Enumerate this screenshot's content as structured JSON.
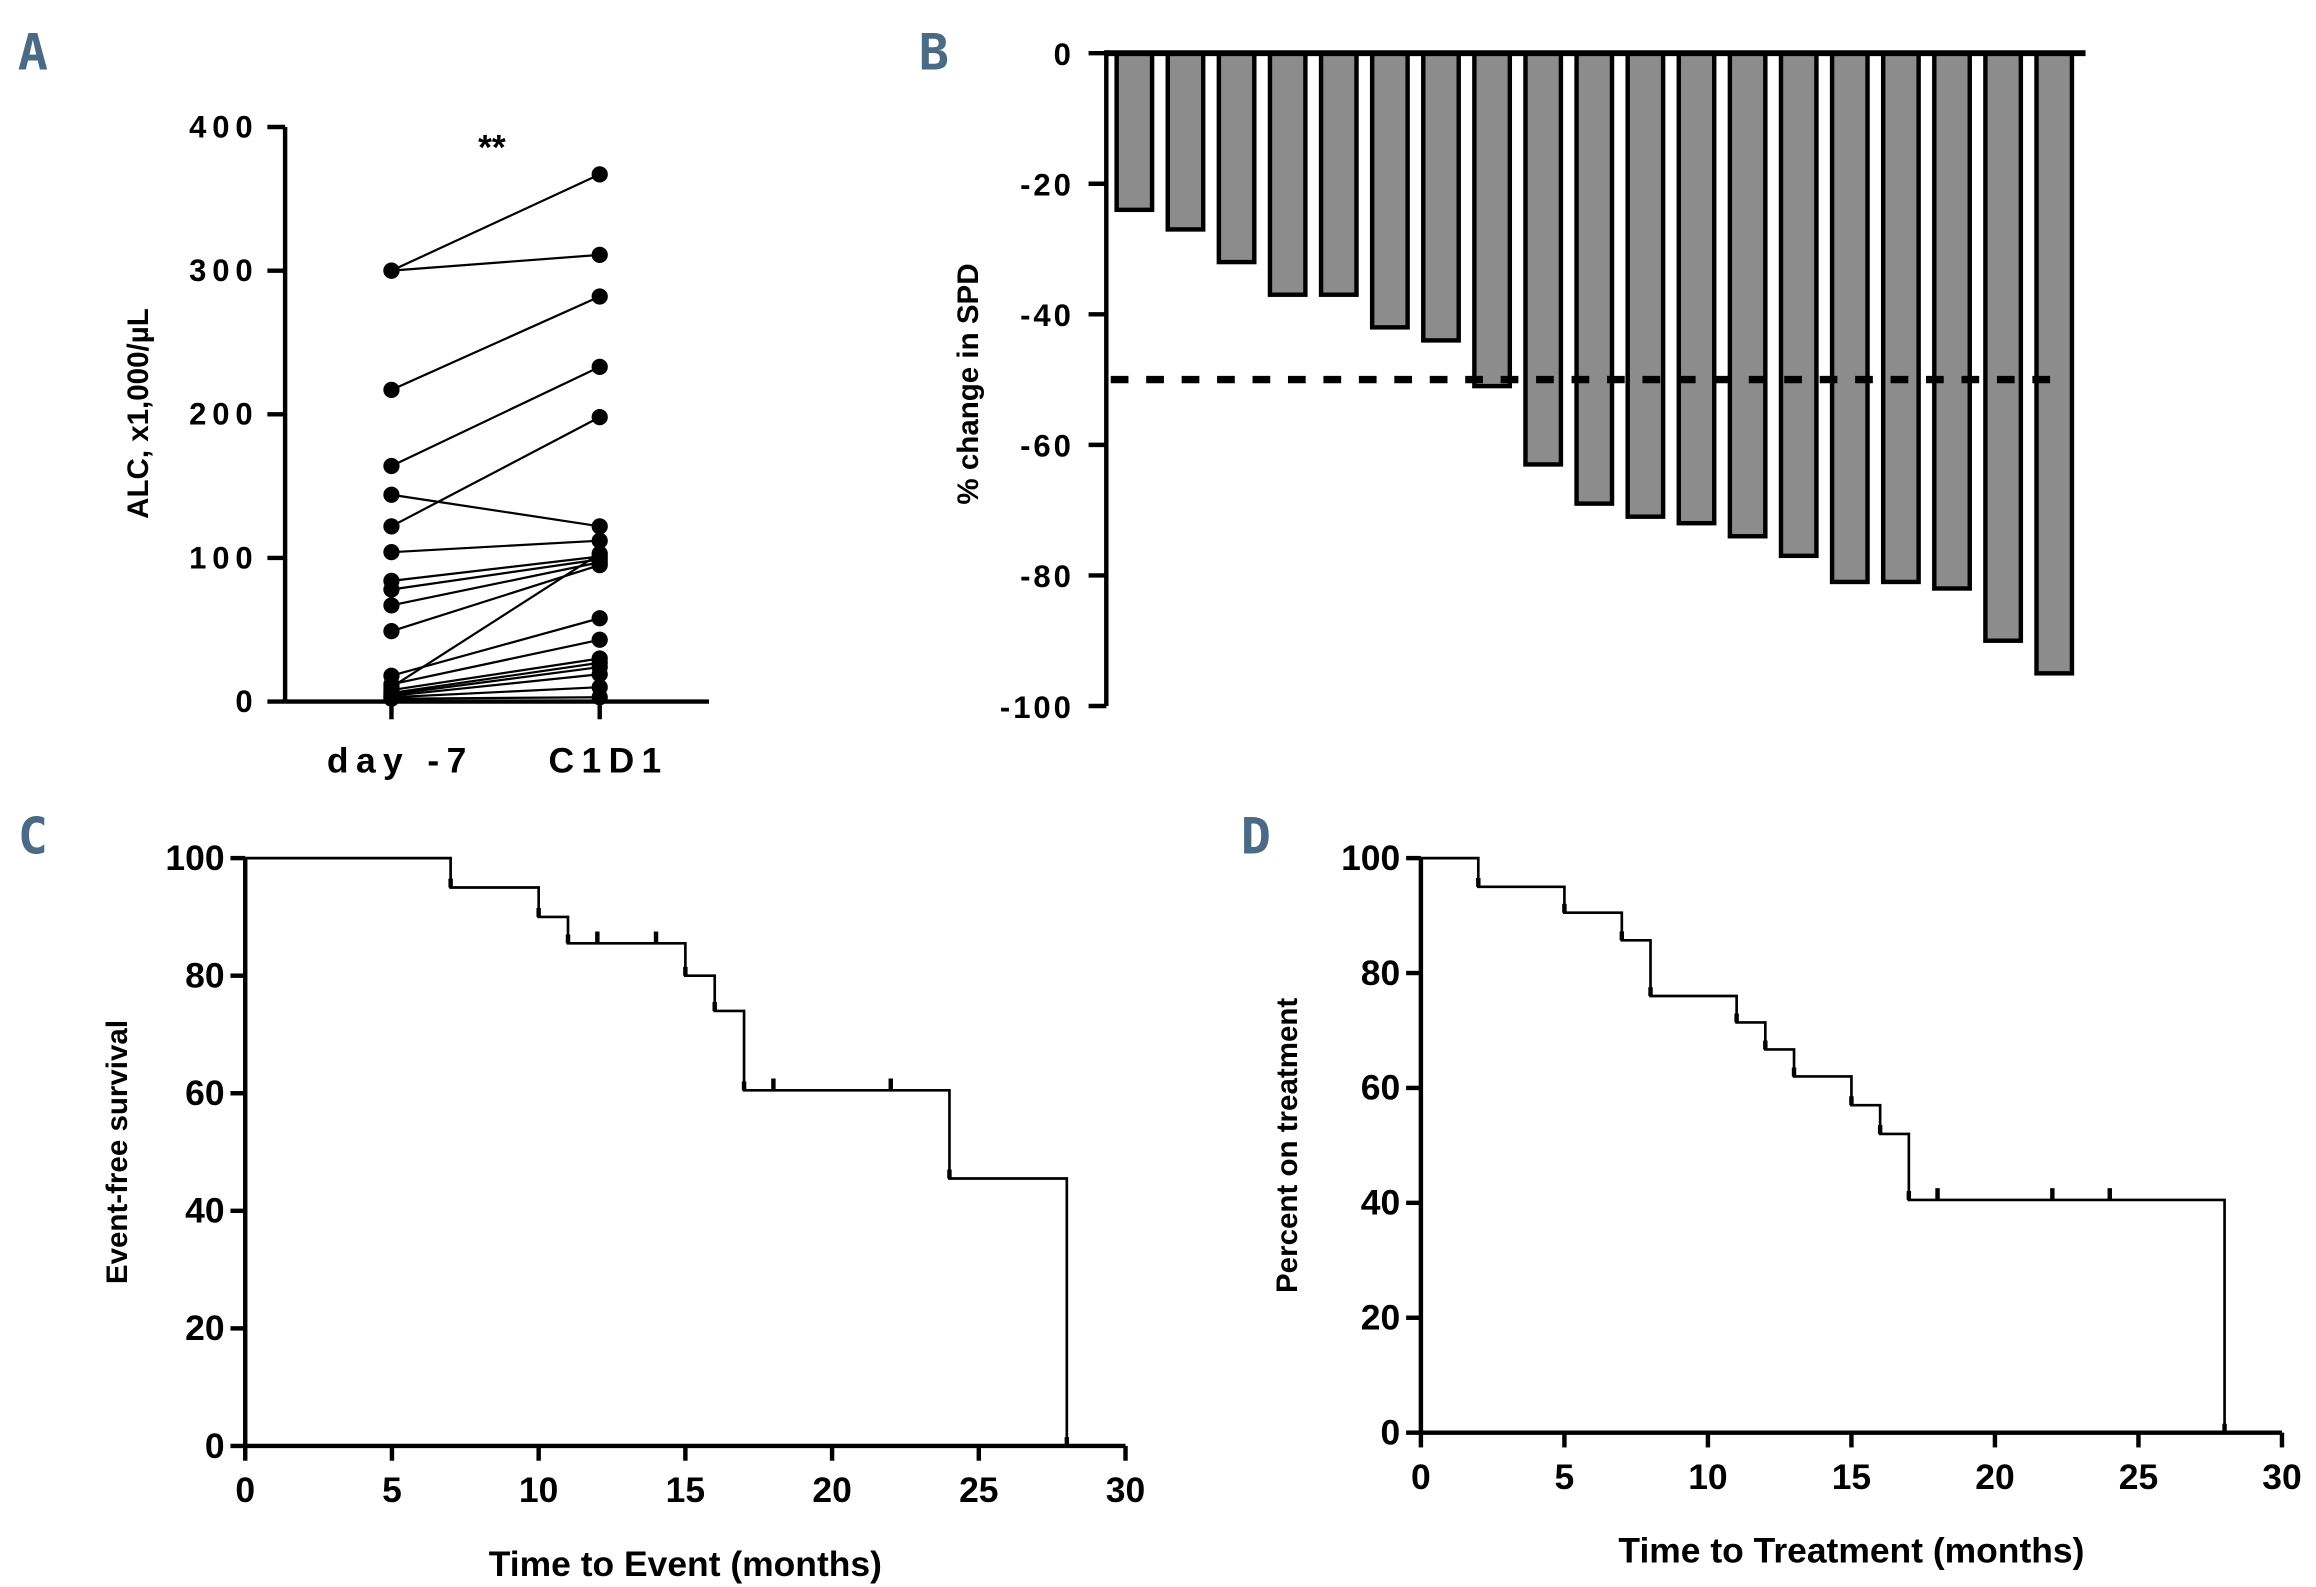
{
  "chart_data": [
    {
      "panel": "A",
      "type": "scatter",
      "title": "",
      "ylabel": "ALC, x1,000/µL",
      "ylim": [
        0,
        400
      ],
      "yticks": [
        0,
        100,
        200,
        300,
        400
      ],
      "categories": [
        "day -7",
        "C1D1"
      ],
      "annotation": "**",
      "pairs": [
        [
          300,
          367
        ],
        [
          300,
          311
        ],
        [
          217,
          282
        ],
        [
          164,
          233
        ],
        [
          122,
          198
        ],
        [
          144,
          122
        ],
        [
          104,
          112
        ],
        [
          84,
          101
        ],
        [
          78,
          99
        ],
        [
          67,
          97
        ],
        [
          49,
          95
        ],
        [
          10,
          103
        ],
        [
          18,
          58
        ],
        [
          12,
          43
        ],
        [
          8,
          30
        ],
        [
          6,
          27
        ],
        [
          5,
          24
        ],
        [
          4,
          19
        ],
        [
          3,
          10
        ],
        [
          2,
          3
        ]
      ]
    },
    {
      "panel": "B",
      "type": "bar",
      "ylabel": "% change in SPD",
      "ylim": [
        -100,
        0
      ],
      "yticks": [
        0,
        -20,
        -40,
        -60,
        -80,
        -100
      ],
      "values": [
        -24,
        -27,
        -32,
        -37,
        -37,
        -42,
        -44,
        -51,
        -63,
        -69,
        -71,
        -72,
        -74,
        -77,
        -81,
        -81,
        -82,
        -90,
        -95
      ],
      "reference_line": -50,
      "bar_color": "#8c8c8c"
    },
    {
      "panel": "C",
      "type": "line",
      "xlabel": "Time to Event (months)",
      "ylabel": "Event-free survival",
      "xlim": [
        0,
        30
      ],
      "ylim": [
        0,
        100
      ],
      "xticks": [
        0,
        5,
        10,
        15,
        20,
        25,
        30
      ],
      "yticks": [
        0,
        20,
        40,
        60,
        80,
        100
      ],
      "steps": [
        [
          0,
          100
        ],
        [
          7,
          95
        ],
        [
          10,
          90
        ],
        [
          11,
          85.5
        ],
        [
          15,
          80
        ],
        [
          16,
          74
        ],
        [
          17,
          60.5
        ],
        [
          24,
          45.5
        ],
        [
          28,
          0
        ]
      ],
      "censored": [
        [
          12,
          85.5
        ],
        [
          14,
          85.5
        ],
        [
          18,
          60.5
        ],
        [
          22,
          60.5
        ]
      ]
    },
    {
      "panel": "D",
      "type": "line",
      "xlabel": "Time to Treatment (months)",
      "ylabel": "Percent on treatment",
      "xlim": [
        0,
        30
      ],
      "ylim": [
        0,
        100
      ],
      "xticks": [
        0,
        5,
        10,
        15,
        20,
        25,
        30
      ],
      "yticks": [
        0,
        20,
        40,
        60,
        80,
        100
      ],
      "steps": [
        [
          0,
          100
        ],
        [
          2,
          95
        ],
        [
          5,
          90.5
        ],
        [
          7,
          85.7
        ],
        [
          8,
          76
        ],
        [
          11,
          71.4
        ],
        [
          12,
          66.7
        ],
        [
          13,
          62
        ],
        [
          15,
          57
        ],
        [
          16,
          52
        ],
        [
          17,
          40.5
        ],
        [
          28,
          0
        ]
      ],
      "censored": [
        [
          18,
          40.5
        ],
        [
          22,
          40.5
        ],
        [
          24,
          40.5
        ]
      ]
    }
  ],
  "panels": {
    "a": "A",
    "b": "B",
    "c": "C",
    "d": "D"
  }
}
